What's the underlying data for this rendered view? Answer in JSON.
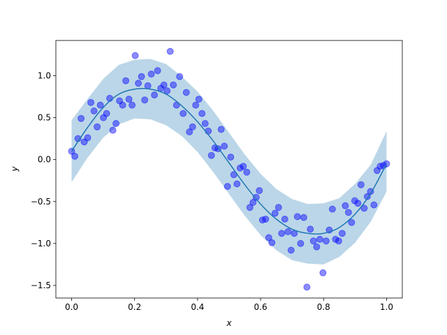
{
  "chart_data": {
    "type": "scatter",
    "xlabel": "x",
    "ylabel": "y",
    "xlim": [
      -0.05,
      1.05
    ],
    "ylim": [
      -1.65,
      1.42
    ],
    "xticks": [
      0.0,
      0.2,
      0.4,
      0.6,
      0.8,
      1.0
    ],
    "xtick_labels": [
      "0.0",
      "0.2",
      "0.4",
      "0.6",
      "0.8",
      "1.0"
    ],
    "yticks": [
      -1.5,
      -1.0,
      -0.5,
      0.0,
      0.5,
      1.0
    ],
    "ytick_labels": [
      "−1.5",
      "−1.0",
      "−0.5",
      "0.0",
      "0.5",
      "1.0"
    ],
    "grid": false,
    "colors": {
      "points": "#0000ff",
      "line": "#1f77b4",
      "band": "#1f77b4"
    },
    "points": {
      "x": [
        0.0,
        0.01,
        0.02,
        0.03,
        0.04,
        0.051,
        0.061,
        0.071,
        0.081,
        0.091,
        0.101,
        0.111,
        0.121,
        0.131,
        0.141,
        0.152,
        0.162,
        0.172,
        0.182,
        0.192,
        0.202,
        0.212,
        0.222,
        0.232,
        0.242,
        0.253,
        0.263,
        0.273,
        0.283,
        0.293,
        0.303,
        0.313,
        0.323,
        0.333,
        0.343,
        0.354,
        0.364,
        0.374,
        0.384,
        0.394,
        0.404,
        0.414,
        0.424,
        0.434,
        0.444,
        0.455,
        0.465,
        0.475,
        0.485,
        0.495,
        0.505,
        0.515,
        0.525,
        0.535,
        0.545,
        0.556,
        0.566,
        0.576,
        0.586,
        0.596,
        0.606,
        0.616,
        0.626,
        0.636,
        0.646,
        0.657,
        0.667,
        0.677,
        0.687,
        0.697,
        0.707,
        0.717,
        0.727,
        0.737,
        0.747,
        0.758,
        0.768,
        0.778,
        0.788,
        0.798,
        0.808,
        0.818,
        0.828,
        0.838,
        0.848,
        0.859,
        0.869,
        0.879,
        0.889,
        0.899,
        0.909,
        0.919,
        0.929,
        0.939,
        0.949,
        0.96,
        0.97,
        0.98,
        0.99,
        1.0
      ],
      "y": [
        0.1,
        0.04,
        0.25,
        0.49,
        0.21,
        0.26,
        0.68,
        0.58,
        0.39,
        0.65,
        0.5,
        0.55,
        0.73,
        0.35,
        0.43,
        0.7,
        0.65,
        0.94,
        0.72,
        0.65,
        1.24,
        0.91,
        0.99,
        0.71,
        0.88,
        1.02,
        0.77,
        1.06,
        0.85,
        0.89,
        0.82,
        1.29,
        0.89,
        0.65,
        0.99,
        0.55,
        0.8,
        0.33,
        0.39,
        0.65,
        0.72,
        0.55,
        0.43,
        0.34,
        0.05,
        0.14,
        0.13,
        0.36,
        0.16,
        -0.32,
        0.03,
        -0.18,
        -0.29,
        -0.1,
        -0.08,
        -0.15,
        -0.57,
        -0.51,
        -0.45,
        -0.37,
        -0.72,
        -0.71,
        -0.93,
        -0.99,
        -0.64,
        -0.57,
        -0.88,
        -0.71,
        -0.86,
        -1.08,
        -0.88,
        -0.68,
        -1.0,
        -0.69,
        -1.52,
        -0.83,
        -0.97,
        -1.04,
        -0.95,
        -1.35,
        -0.97,
        -0.84,
        -0.59,
        -0.95,
        -0.97,
        -0.88,
        -0.55,
        -0.63,
        -0.75,
        -0.49,
        -0.52,
        -0.3,
        -0.58,
        -0.44,
        -0.38,
        -0.54,
        -0.13,
        -0.08,
        -0.07,
        -0.05
      ]
    },
    "fit": {
      "x": [
        0.0,
        0.05,
        0.1,
        0.15,
        0.2,
        0.25,
        0.3,
        0.35,
        0.4,
        0.45,
        0.5,
        0.55,
        0.6,
        0.65,
        0.7,
        0.75,
        0.8,
        0.85,
        0.9,
        0.95,
        1.0
      ],
      "y": [
        0.1,
        0.38,
        0.62,
        0.78,
        0.84,
        0.84,
        0.78,
        0.64,
        0.45,
        0.22,
        -0.04,
        -0.3,
        -0.53,
        -0.71,
        -0.83,
        -0.88,
        -0.88,
        -0.81,
        -0.65,
        -0.4,
        -0.05
      ],
      "y_lower": [
        -0.27,
        0.02,
        0.26,
        0.42,
        0.49,
        0.48,
        0.41,
        0.28,
        0.09,
        -0.15,
        -0.41,
        -0.67,
        -0.9,
        -1.08,
        -1.2,
        -1.24,
        -1.25,
        -1.16,
        -0.99,
        -0.74,
        -0.38
      ],
      "y_upper": [
        0.47,
        0.72,
        0.96,
        1.13,
        1.19,
        1.2,
        1.14,
        0.99,
        0.81,
        0.58,
        0.32,
        0.06,
        -0.17,
        -0.35,
        -0.47,
        -0.53,
        -0.52,
        -0.46,
        -0.29,
        -0.06,
        0.34
      ]
    }
  }
}
